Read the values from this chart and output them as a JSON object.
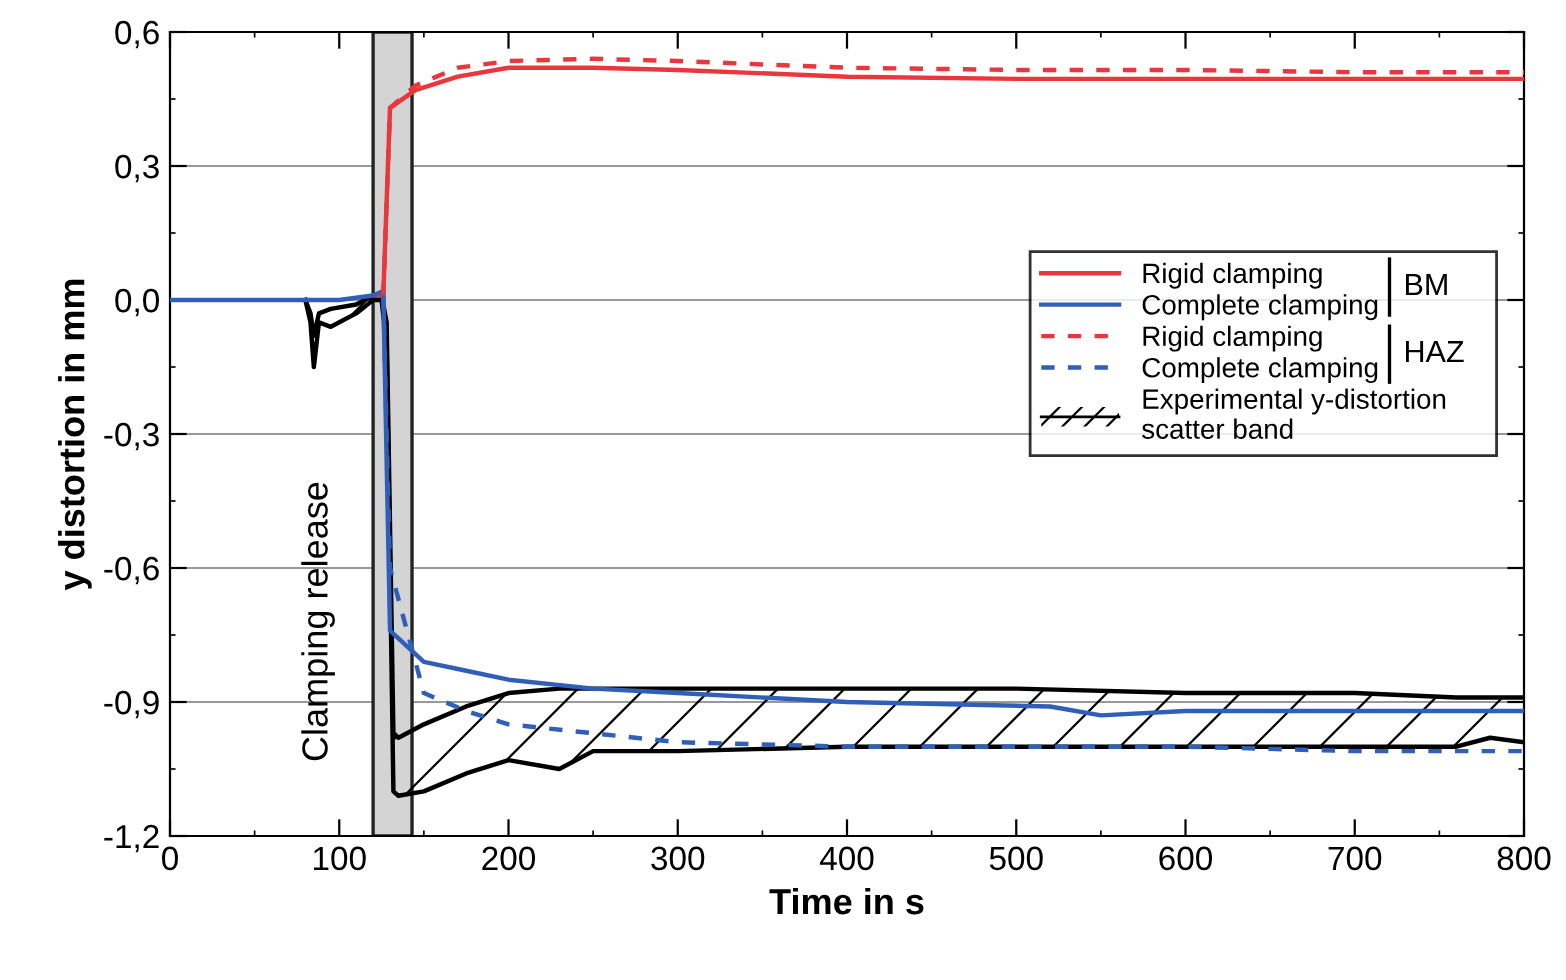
{
  "chart_data": {
    "type": "line",
    "xlabel": "Time in s",
    "ylabel": "y distortion in mm",
    "xlim": [
      0,
      800
    ],
    "ylim": [
      -1.2,
      0.6
    ],
    "xticks": [
      0,
      100,
      200,
      300,
      400,
      500,
      600,
      700,
      800
    ],
    "yticks": [
      {
        "value": -1.2,
        "label": "-1,2"
      },
      {
        "value": -0.9,
        "label": "-0,9"
      },
      {
        "value": -0.6,
        "label": "-0,6"
      },
      {
        "value": -0.3,
        "label": "-0,3"
      },
      {
        "value": 0,
        "label": "0,0"
      },
      {
        "value": 0.3,
        "label": "0,3"
      },
      {
        "value": 0.6,
        "label": "0,6"
      }
    ],
    "grid": "y",
    "legend": "right",
    "bands": [
      {
        "axis": "x",
        "from": 120,
        "to": 143,
        "label": "Clamping release",
        "color": "#d4d4d4"
      }
    ],
    "annotations": [
      "BM",
      "HAZ"
    ],
    "series": [
      {
        "name": "Rigid clamping",
        "color": "#e8383d",
        "line_style": "solid",
        "x": [
          120,
          126,
          130,
          145,
          170,
          200,
          250,
          300,
          400,
          500,
          600,
          700,
          800
        ],
        "values": [
          0.01,
          0.01,
          0.43,
          0.47,
          0.5,
          0.52,
          0.52,
          0.515,
          0.5,
          0.495,
          0.495,
          0.495,
          0.495
        ]
      },
      {
        "name": "Complete clamping",
        "color": "#2f5fb8",
        "line_style": "solid",
        "x": [
          0,
          60,
          100,
          120,
          126,
          130,
          150,
          175,
          200,
          250,
          300,
          400,
          520,
          550,
          600,
          700,
          800
        ],
        "values": [
          0,
          0,
          0,
          0.01,
          0.02,
          -0.74,
          -0.81,
          -0.83,
          -0.85,
          -0.87,
          -0.88,
          -0.9,
          -0.91,
          -0.93,
          -0.92,
          -0.92,
          -0.92
        ]
      },
      {
        "name": "Rigid clamping",
        "color": "#e8383d",
        "line_style": "dashed",
        "x": [
          126,
          130,
          145,
          170,
          200,
          250,
          300,
          400,
          500,
          600,
          700,
          800
        ],
        "values": [
          0.01,
          0.43,
          0.48,
          0.52,
          0.535,
          0.54,
          0.535,
          0.52,
          0.515,
          0.515,
          0.51,
          0.51
        ]
      },
      {
        "name": "Complete clamping",
        "color": "#2f5fb8",
        "line_style": "dashed",
        "x": [
          126,
          130,
          150,
          175,
          200,
          250,
          300,
          400,
          500,
          600,
          700,
          800
        ],
        "values": [
          0.01,
          -0.6,
          -0.88,
          -0.92,
          -0.95,
          -0.97,
          -0.99,
          -1.0,
          -1.0,
          -1.0,
          -1.01,
          -1.01
        ]
      },
      {
        "name": "Experimental y-distortion\nscatter band",
        "color": "#000000",
        "x": [
          80,
          83,
          85,
          88,
          95,
          110,
          120,
          125,
          128,
          132,
          135,
          150,
          175,
          200,
          230,
          250,
          300,
          400,
          500,
          600,
          700,
          760,
          780,
          800
        ],
        "values": [
          0,
          -0.03,
          -0.08,
          -0.03,
          -0.02,
          -0.01,
          0.01,
          0.01,
          -0.05,
          -0.97,
          -0.98,
          -0.95,
          -0.91,
          -0.88,
          -0.87,
          -0.87,
          -0.87,
          -0.87,
          -0.87,
          -0.88,
          -0.88,
          -0.89,
          -0.89,
          -0.89
        ]
      },
      {
        "color": "#000000",
        "x": [
          80,
          83,
          85,
          88,
          95,
          110,
          120,
          125,
          128,
          132,
          135,
          150,
          175,
          200,
          230,
          250,
          300,
          400,
          500,
          600,
          700,
          760,
          780,
          800
        ],
        "values": [
          0,
          -0.05,
          -0.15,
          -0.05,
          -0.06,
          -0.03,
          0,
          0.0,
          -0.1,
          -1.1,
          -1.11,
          -1.1,
          -1.06,
          -1.03,
          -1.05,
          -1.01,
          -1.01,
          -1.0,
          -1.0,
          -1.0,
          -1.0,
          -1.0,
          -0.98,
          -0.99
        ]
      }
    ]
  }
}
